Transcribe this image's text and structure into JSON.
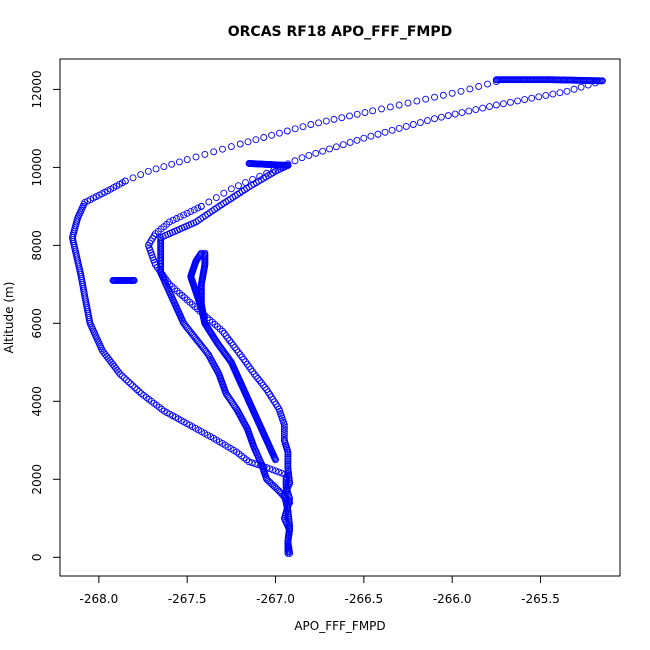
{
  "chart_data": {
    "type": "scatter",
    "title": "ORCAS RF18 APO_FFF_FMPD",
    "xlabel": "APO_FFF_FMPD",
    "ylabel": "Altitude (m)",
    "xlim": [
      -268.22,
      -265.05
    ],
    "ylim": [
      -480,
      12780
    ],
    "xticks": [
      -268.0,
      -267.5,
      -267.0,
      -266.5,
      -266.0,
      -265.5
    ],
    "xtick_labels": [
      "-268.0",
      "-267.5",
      "-267.0",
      "-266.5",
      "-266.0",
      "-265.5"
    ],
    "yticks": [
      0,
      2000,
      4000,
      6000,
      8000,
      10000,
      12000
    ],
    "ytick_labels": [
      "0",
      "2000",
      "4000",
      "6000",
      "8000",
      "10000",
      "12000"
    ],
    "grid": false,
    "marker": "open-circle",
    "series": [
      {
        "name": "APO_FFF_FMPD",
        "color": "#0000ff",
        "segments": [
          {
            "step": 45,
            "points": [
              [
                -266.92,
                100
              ],
              [
                -266.93,
                400
              ],
              [
                -266.92,
                700
              ],
              [
                -266.95,
                1000
              ],
              [
                -266.93,
                1300
              ],
              [
                -266.92,
                1500
              ],
              [
                -266.94,
                1800
              ],
              [
                -266.94,
                2050
              ]
            ]
          },
          {
            "step": 50,
            "points": [
              [
                -266.93,
                2100
              ],
              [
                -267.05,
                2300
              ],
              [
                -267.15,
                2450
              ],
              [
                -267.22,
                2700
              ],
              [
                -267.35,
                3050
              ],
              [
                -267.47,
                3350
              ],
              [
                -267.63,
                3750
              ],
              [
                -267.76,
                4200
              ],
              [
                -267.88,
                4700
              ],
              [
                -267.98,
                5300
              ],
              [
                -268.05,
                6000
              ],
              [
                -268.08,
                6700
              ],
              [
                -268.1,
                7200
              ],
              [
                -268.13,
                7800
              ],
              [
                -268.15,
                8200
              ],
              [
                -268.12,
                8700
              ],
              [
                -268.08,
                9100
              ],
              [
                -267.95,
                9400
              ],
              [
                -267.85,
                9650
              ]
            ]
          },
          {
            "step": 140,
            "points": [
              [
                -267.85,
                9650
              ],
              [
                -267.72,
                9900
              ],
              [
                -267.5,
                10200
              ],
              [
                -267.2,
                10600
              ],
              [
                -266.8,
                11100
              ],
              [
                -266.45,
                11450
              ],
              [
                -266.1,
                11800
              ],
              [
                -265.95,
                11950
              ],
              [
                -265.75,
                12200
              ]
            ]
          },
          {
            "step": 20,
            "points": [
              [
                -265.75,
                12250
              ],
              [
                -265.45,
                12250
              ],
              [
                -265.15,
                12220
              ]
            ]
          },
          {
            "step": 120,
            "points": [
              [
                -265.15,
                12220
              ],
              [
                -265.35,
                11950
              ],
              [
                -265.75,
                11600
              ],
              [
                -266.1,
                11250
              ],
              [
                -266.5,
                10750
              ],
              [
                -266.85,
                10250
              ],
              [
                -267.05,
                9850
              ],
              [
                -267.25,
                9450
              ],
              [
                -267.42,
                9000
              ]
            ]
          },
          {
            "step": 60,
            "points": [
              [
                -267.42,
                9000
              ],
              [
                -267.6,
                8600
              ],
              [
                -267.68,
                8300
              ],
              [
                -267.72,
                8000
              ],
              [
                -267.68,
                7500
              ],
              [
                -267.6,
                7000
              ],
              [
                -267.5,
                6600
              ],
              [
                -267.4,
                6200
              ],
              [
                -267.3,
                5800
              ],
              [
                -267.2,
                5200
              ],
              [
                -267.12,
                4700
              ],
              [
                -267.05,
                4300
              ],
              [
                -266.98,
                3800
              ],
              [
                -266.95,
                3400
              ],
              [
                -266.95,
                3000
              ]
            ]
          },
          {
            "step": 45,
            "points": [
              [
                -266.95,
                3000
              ],
              [
                -266.93,
                2700
              ],
              [
                -266.93,
                2300
              ],
              [
                -266.92,
                1900
              ],
              [
                -266.95,
                1600
              ],
              [
                -266.93,
                1200
              ],
              [
                -266.92,
                800
              ],
              [
                -266.93,
                400
              ],
              [
                -266.93,
                100
              ]
            ]
          },
          {
            "step": 40,
            "points": [
              [
                -266.92,
                1400
              ],
              [
                -266.98,
                1700
              ],
              [
                -267.05,
                2000
              ],
              [
                -267.08,
                2400
              ],
              [
                -267.12,
                2800
              ],
              [
                -267.16,
                3300
              ],
              [
                -267.22,
                3800
              ],
              [
                -267.28,
                4200
              ],
              [
                -267.32,
                4700
              ],
              [
                -267.38,
                5200
              ],
              [
                -267.45,
                5600
              ],
              [
                -267.52,
                6000
              ],
              [
                -267.57,
                6500
              ],
              [
                -267.65,
                7300
              ],
              [
                -267.65,
                8200
              ],
              [
                -267.45,
                8600
              ],
              [
                -267.32,
                9000
              ],
              [
                -267.15,
                9500
              ],
              [
                -267.0,
                9900
              ],
              [
                -266.93,
                10050
              ]
            ]
          },
          {
            "step": 15,
            "points": [
              [
                -266.93,
                10050
              ],
              [
                -267.15,
                10100
              ]
            ]
          },
          {
            "step": 30,
            "points": [
              [
                -267.0,
                2500
              ],
              [
                -267.05,
                3000
              ],
              [
                -267.1,
                3500
              ],
              [
                -267.15,
                4000
              ],
              [
                -267.2,
                4500
              ],
              [
                -267.25,
                5000
              ],
              [
                -267.33,
                5500
              ],
              [
                -267.4,
                6000
              ],
              [
                -267.42,
                6500
              ],
              [
                -267.42,
                7000
              ],
              [
                -267.4,
                7500
              ],
              [
                -267.4,
                7800
              ]
            ]
          },
          {
            "step": 15,
            "points": [
              [
                -267.92,
                7100
              ],
              [
                -267.8,
                7100
              ]
            ]
          },
          {
            "step": 25,
            "points": [
              [
                -267.4,
                6000
              ],
              [
                -267.42,
                6400
              ],
              [
                -267.45,
                6800
              ],
              [
                -267.48,
                7200
              ],
              [
                -267.45,
                7600
              ],
              [
                -267.42,
                7800
              ]
            ]
          }
        ]
      }
    ]
  }
}
